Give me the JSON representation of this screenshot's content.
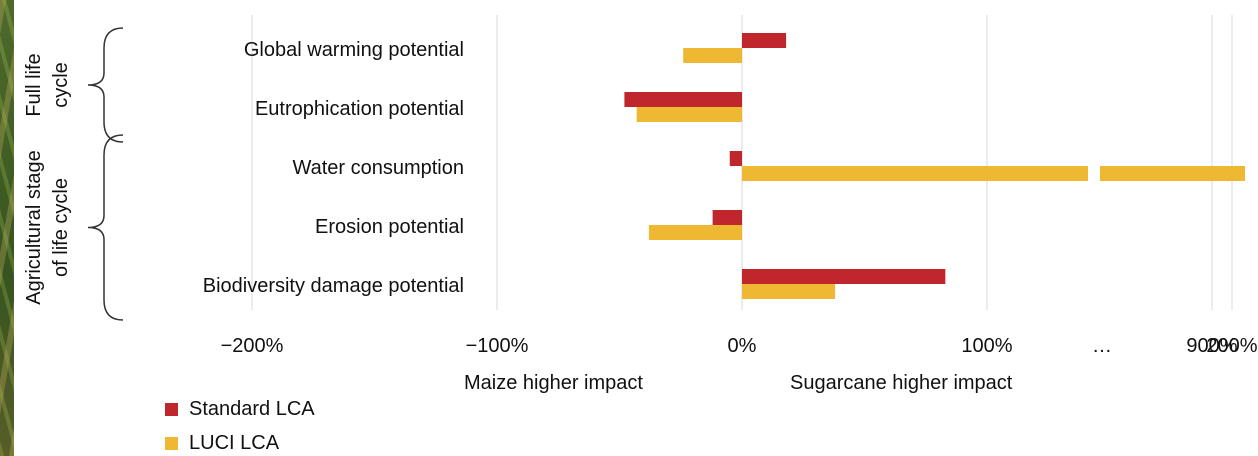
{
  "chart_data": {
    "type": "bar",
    "orientation": "horizontal",
    "categories": [
      "Global warming potential",
      "Eutrophication potential",
      "Water consumption",
      "Erosion potential",
      "Biodiversity damage potential"
    ],
    "series": [
      {
        "name": "Standard LCA",
        "color": "#c0272d",
        "values": [
          18,
          -48,
          -5,
          -12,
          83
        ]
      },
      {
        "name": "LUCI LCA",
        "color": "#efb832",
        "values": [
          -24,
          -43,
          900,
          -38,
          38
        ]
      }
    ],
    "x_ticks": [
      "−200%",
      "−100%",
      "0%",
      "100%",
      "200%",
      "…",
      "900%"
    ],
    "xlim": [
      -200,
      900
    ],
    "axis_break": true,
    "grid": true,
    "groups": [
      {
        "label_lines": [
          "Full life",
          "cycle"
        ],
        "categories": [
          0,
          1
        ]
      },
      {
        "label_lines": [
          "Agricultural stage",
          "of life cycle"
        ],
        "categories": [
          2,
          3,
          4
        ]
      }
    ],
    "annotations": {
      "left": "Maize higher impact",
      "right": "Sugarcane higher impact"
    },
    "legend_position": "bottom-left"
  }
}
